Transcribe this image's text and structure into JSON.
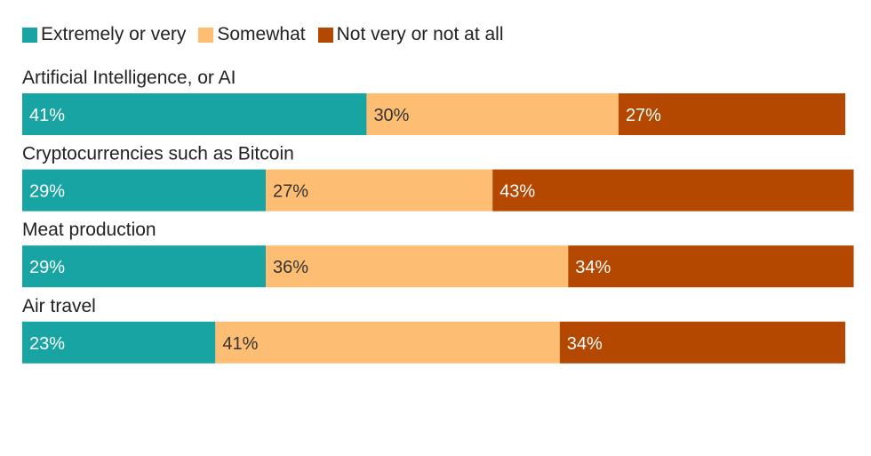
{
  "chart_data": {
    "type": "bar",
    "orientation": "horizontal-stacked",
    "title": "",
    "xlabel": "",
    "ylabel": "",
    "xlim": [
      0,
      100
    ],
    "grid": false,
    "legend_position": "top-left",
    "categories": [
      "Artificial Intelligence, or AI",
      "Cryptocurrencies such as Bitcoin",
      "Meat production",
      "Air travel"
    ],
    "series": [
      {
        "name": "Extremely or very",
        "color": "#17a4a2",
        "label_color": "#ffffff",
        "values": [
          41,
          29,
          29,
          23
        ]
      },
      {
        "name": "Somewhat",
        "color": "#fdbe74",
        "label_color": "#333333",
        "values": [
          30,
          27,
          36,
          41
        ]
      },
      {
        "name": "Not very or not at all",
        "color": "#b54800",
        "label_color": "#ffffff",
        "values": [
          27,
          43,
          34,
          34
        ]
      }
    ],
    "value_suffix": "%"
  }
}
